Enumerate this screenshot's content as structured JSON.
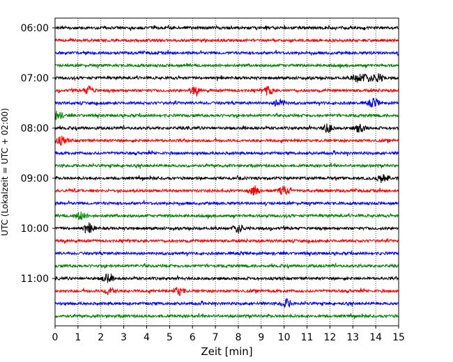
{
  "chart_data": {
    "type": "line",
    "title": "",
    "xlabel": "Zeit  [min]",
    "ylabel": "UTC (Lokalzeit = UTC + 02:00)",
    "xlim": [
      0,
      15
    ],
    "x_ticks": [
      "0",
      "1",
      "2",
      "3",
      "4",
      "5",
      "6",
      "7",
      "8",
      "9",
      "10",
      "11",
      "12",
      "13",
      "14",
      "15"
    ],
    "y_ticks": [
      "06:00",
      "07:00",
      "08:00",
      "09:00",
      "10:00",
      "11:00"
    ],
    "grid": "vertical dotted",
    "trace_interval_minutes": 15,
    "trace_colors": [
      "#000000",
      "#ff0000",
      "#0000ff",
      "#008000"
    ],
    "series": [
      {
        "start": "06:00",
        "color": "#000000"
      },
      {
        "start": "06:15",
        "color": "#ff0000"
      },
      {
        "start": "06:30",
        "color": "#0000ff"
      },
      {
        "start": "06:45",
        "color": "#008000"
      },
      {
        "start": "07:00",
        "color": "#000000",
        "events_min": [
          13.2,
          13.6,
          14.1
        ]
      },
      {
        "start": "07:15",
        "color": "#ff0000",
        "events_min": [
          1.5,
          6.1,
          9.3
        ]
      },
      {
        "start": "07:30",
        "color": "#0000ff",
        "events_min": [
          9.8,
          13.9
        ]
      },
      {
        "start": "07:45",
        "color": "#008000",
        "events_min": [
          0.1
        ]
      },
      {
        "start": "08:00",
        "color": "#000000",
        "events_min": [
          11.9,
          13.3
        ]
      },
      {
        "start": "08:15",
        "color": "#ff0000",
        "events_min": [
          0.3
        ]
      },
      {
        "start": "08:30",
        "color": "#0000ff"
      },
      {
        "start": "08:45",
        "color": "#008000"
      },
      {
        "start": "09:00",
        "color": "#000000",
        "events_min": [
          14.3
        ]
      },
      {
        "start": "09:15",
        "color": "#ff0000",
        "events_min": [
          8.7,
          10.0
        ]
      },
      {
        "start": "09:30",
        "color": "#0000ff"
      },
      {
        "start": "09:45",
        "color": "#008000",
        "events_min": [
          1.1
        ]
      },
      {
        "start": "10:00",
        "color": "#000000",
        "events_min": [
          1.5,
          8.0
        ]
      },
      {
        "start": "10:15",
        "color": "#ff0000"
      },
      {
        "start": "10:30",
        "color": "#0000ff"
      },
      {
        "start": "10:45",
        "color": "#008000"
      },
      {
        "start": "11:00",
        "color": "#000000",
        "events_min": [
          2.3
        ]
      },
      {
        "start": "11:15",
        "color": "#ff0000",
        "events_min": [
          2.4,
          5.4
        ]
      },
      {
        "start": "11:30",
        "color": "#0000ff",
        "events_min": [
          10.1
        ]
      },
      {
        "start": "11:45",
        "color": "#008000"
      }
    ]
  }
}
